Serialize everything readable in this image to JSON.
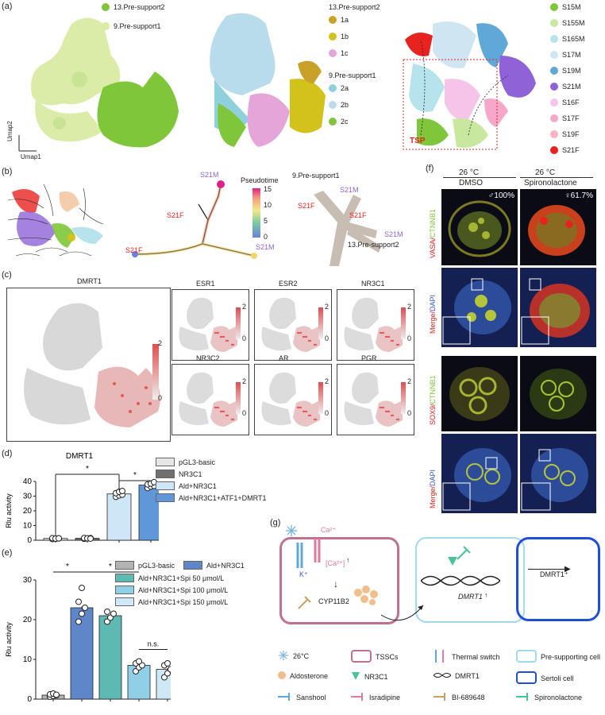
{
  "panel_letters": {
    "a": "(a)",
    "b": "(b)",
    "c": "(c)",
    "d": "(d)",
    "e": "(e)",
    "f": "(f)",
    "g": "(g)"
  },
  "panel_a": {
    "clusters_left": [
      {
        "label": "13.Pre-support2",
        "color": "#7fc63a"
      },
      {
        "label": "9.Pre-support1",
        "color": "#d9eca4"
      }
    ],
    "clusters_mid": {
      "group1": "13.Pre-support2",
      "group1_items": [
        {
          "label": "1a",
          "color": "#c9a126"
        },
        {
          "label": "1b",
          "color": "#d4c21c"
        },
        {
          "label": "1c",
          "color": "#e6a5d8"
        }
      ],
      "group2": "9.Pre-support1",
      "group2_items": [
        {
          "label": "2a",
          "color": "#8fd0dd"
        },
        {
          "label": "2b",
          "color": "#b9dcec"
        },
        {
          "label": "2c",
          "color": "#7fc63a"
        }
      ]
    },
    "stages": [
      {
        "label": "S15M",
        "color": "#7fc63a"
      },
      {
        "label": "S155M",
        "color": "#c8e8a0"
      },
      {
        "label": "S165M",
        "color": "#b7e3ec"
      },
      {
        "label": "S17M",
        "color": "#cfe6f2"
      },
      {
        "label": "S19M",
        "color": "#5fa8d8"
      },
      {
        "label": "S21M",
        "color": "#8f62d8"
      },
      {
        "label": "S16F",
        "color": "#f5c4e8"
      },
      {
        "label": "S17F",
        "color": "#f7a7c9"
      },
      {
        "label": "S19F",
        "color": "#f9b3c5"
      },
      {
        "label": "S21F",
        "color": "#e8231f"
      }
    ],
    "tsp": "TSP",
    "umap2": "Umap2",
    "umap1": "Umap1"
  },
  "panel_b": {
    "pseudotime": "Pseudotime",
    "pt_ticks": [
      "15",
      "10",
      "5",
      "0"
    ],
    "s21m": "S21M",
    "s21f": "S21F",
    "pre1": "9.Pre-support1",
    "pre2": "13.Pre-support2"
  },
  "panel_c": {
    "main_gene": "DMRT1",
    "main_ticks": [
      "2",
      "0"
    ],
    "genes": [
      "ESR1",
      "ESR2",
      "NR3C1",
      "NR3C2",
      "AR",
      "PGR"
    ],
    "small_ticks": [
      "2",
      "0"
    ]
  },
  "panel_d": {
    "title": "DMRT1",
    "ylabel": "Rlu activity",
    "legend": [
      "pGL3-basic",
      "NR3C1",
      "Ald+NR3C1",
      "Ald+NR3C1+ATF1+DMRT1"
    ],
    "legend_colors": [
      "#e6e6e6",
      "#707070",
      "#cfe6f6",
      "#5f97d8"
    ],
    "sig": [
      "*",
      "*"
    ]
  },
  "panel_e": {
    "ylabel": "Rlu activity",
    "legend": [
      "pGL3-basic",
      "Ald+NR3C1",
      "Ald+NR3C1+Spi 50 μmol/L",
      "Ald+NR3C1+Spi 100 μmol/L",
      "Ald+NR3C1+Spi 150 μmol/L"
    ],
    "legend_colors": [
      "#b3b3b3",
      "#5f86c8",
      "#5fb9b3",
      "#8fd0e6",
      "#cfe8f6"
    ],
    "sig": [
      "*",
      "*",
      "n.s."
    ]
  },
  "panel_f": {
    "col1_temp": "26 °C",
    "col1_treat": "DMSO",
    "col2_temp": "26 °C",
    "col2_treat": "Spironolactone",
    "pct1": "♂100%",
    "pct2": "♀61.7%",
    "row1_label_a": "VASA/",
    "row1_label_b": "CTNNB1",
    "row2_label_a": "Merge/",
    "row2_label_b": "DAPI",
    "row3_label_a": "SOX9/",
    "row3_label_b": "CTNNB1",
    "row4_label_a": "Merge/",
    "row4_label_b": "DAPI"
  },
  "panel_g": {
    "ca": "Ca²⁺",
    "k": "K⁺",
    "ca_in": "[Ca²⁺]",
    "cyp": "CYP11B2",
    "dmrt1_gene": "DMRT1",
    "dmrt1_pos": "DMRT1⁺",
    "legend": [
      {
        "label": "26°C",
        "icon": "snowflake-icon"
      },
      {
        "label": "TSSCs",
        "icon": "tsscs-box-icon"
      },
      {
        "label": "Thermal switch",
        "icon": "thermal-switch-icon"
      },
      {
        "label": "Pre-supporting cell",
        "icon": "presupport-box-icon"
      },
      {
        "label": "Aldosterone",
        "icon": "aldosterone-dot-icon"
      },
      {
        "label": "NR3C1",
        "icon": "nr3c1-triangle-icon"
      },
      {
        "label": "DMRT1",
        "icon": "dna-icon"
      },
      {
        "label": "Sertoli cell",
        "icon": "sertoli-box-icon"
      },
      {
        "label": "Sanshool",
        "icon": "sanshool-icon"
      },
      {
        "label": "Isradipine",
        "icon": "isradipine-icon"
      },
      {
        "label": "BI-689648",
        "icon": "bi-icon"
      },
      {
        "label": "Spironolactone",
        "icon": "spironolactone-icon"
      }
    ]
  },
  "chart_data": [
    {
      "type": "bar",
      "title": "DMRT1",
      "categories": [
        "pGL3-basic",
        "NR3C1",
        "Ald+NR3C1",
        "Ald+NR3C1+ATF1+DMRT1"
      ],
      "values": [
        1.2,
        1.3,
        31.5,
        37.5
      ],
      "points": [
        [
          0.8,
          1.0,
          1.2,
          1.4,
          1.1,
          1.3
        ],
        [
          1.0,
          1.2,
          1.4,
          1.5,
          1.3,
          1.1
        ],
        [
          29.5,
          30.5,
          31,
          32,
          33,
          33.5
        ],
        [
          35.5,
          36.5,
          37,
          38,
          38.5,
          39.5
        ]
      ],
      "ylabel": "Rlu activity",
      "ylim": [
        0,
        40
      ],
      "yticks": [
        "0",
        "10",
        "20",
        "30",
        "40"
      ]
    },
    {
      "type": "bar",
      "categories": [
        "pGL3-basic",
        "Ald+NR3C1",
        "Ald+NR3C1+Spi 50 μmol/L",
        "Ald+NR3C1+Spi 100 μmol/L",
        "Ald+NR3C1+Spi 150 μmol/L"
      ],
      "values": [
        1.0,
        23.0,
        21.0,
        8.5,
        7.5
      ],
      "points": [
        [
          0.6,
          0.8,
          1.0,
          1.2,
          1.4,
          1.1
        ],
        [
          19.5,
          21.5,
          23,
          24.5,
          28
        ],
        [
          19.5,
          20.5,
          21.5,
          22
        ],
        [
          7,
          8,
          8.5,
          9,
          9.5
        ],
        [
          5.5,
          6.5,
          7.5,
          8.5,
          9
        ]
      ],
      "ylabel": "Rlu activity",
      "ylim": [
        0,
        30
      ],
      "yticks": [
        "0",
        "10",
        "20",
        "30"
      ]
    }
  ]
}
